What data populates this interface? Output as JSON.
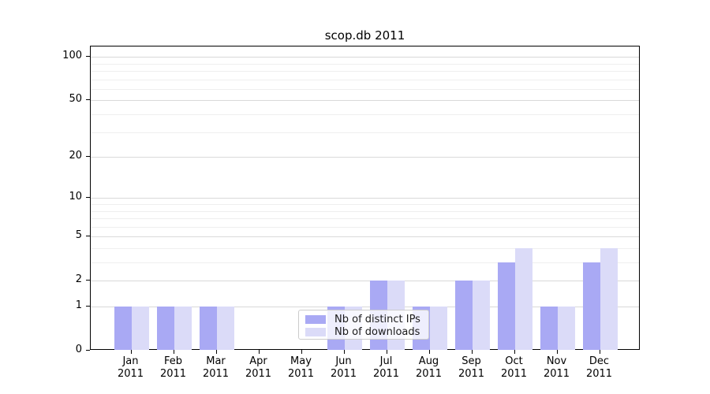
{
  "chart_data": {
    "type": "bar",
    "title": "scop.db 2011",
    "categories": [
      "Jan 2011",
      "Feb 2011",
      "Mar 2011",
      "Apr 2011",
      "May 2011",
      "Jun 2011",
      "Jul 2011",
      "Aug 2011",
      "Sep 2011",
      "Oct 2011",
      "Nov 2011",
      "Dec 2011"
    ],
    "series": [
      {
        "name": "Nb of distinct IPs",
        "color": "#a9a9f4",
        "values": [
          1,
          1,
          1,
          0,
          0,
          1,
          2,
          1,
          2,
          3,
          1,
          3
        ]
      },
      {
        "name": "Nb of downloads",
        "color": "#dbdbf8",
        "values": [
          1,
          1,
          1,
          0,
          0,
          1,
          2,
          1,
          2,
          4,
          1,
          4
        ]
      }
    ],
    "xlabel": "",
    "ylabel": "",
    "yscale": "log1p",
    "ylim": [
      0,
      118
    ],
    "ytick_values": [
      0,
      1,
      2,
      5,
      10,
      20,
      50,
      100
    ],
    "ytick_labels": [
      "0",
      "1",
      "2",
      "5",
      "10",
      "20",
      "50",
      "100"
    ],
    "minor_grid_values": [
      3,
      4,
      6,
      7,
      8,
      9,
      30,
      40,
      60,
      70,
      80,
      90
    ],
    "grid": true,
    "legend_position": "lower center",
    "colors": {
      "grid_major": "#d9d9d9",
      "grid_minor": "#efefef",
      "spine": "#000000",
      "text": "#000000"
    }
  }
}
